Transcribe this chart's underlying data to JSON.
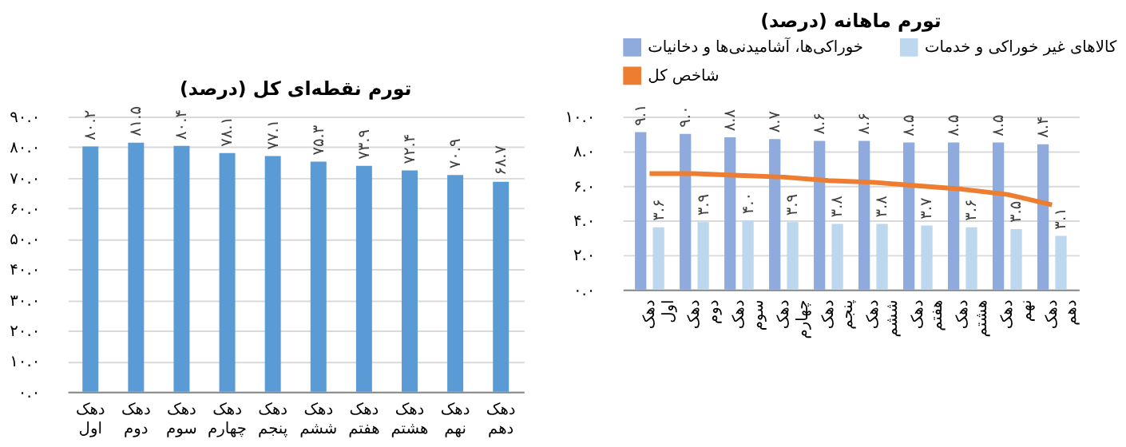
{
  "chart_data": [
    {
      "type": "bar",
      "title": "تورم نقطه‌ای کل (درصد)",
      "categories": [
        "دهک اول",
        "دهک دوم",
        "دهک سوم",
        "دهک چهارم",
        "دهک پنجم",
        "دهک ششم",
        "دهک هفتم",
        "دهک هشتم",
        "دهک نهم",
        "دهک دهم"
      ],
      "series": [
        {
          "color": "#5b9bd5",
          "values": [
            80.2,
            81.5,
            80.4,
            78.1,
            77.1,
            75.3,
            73.9,
            72.4,
            70.9,
            68.7
          ],
          "value_labels": [
            "۸۰.۲",
            "۸۱.۵",
            "۸۰.۴",
            "۷۸.۱",
            "۷۷.۱",
            "۷۵.۳",
            "۷۳.۹",
            "۷۲.۴",
            "۷۰.۹",
            "۶۸.۷"
          ]
        }
      ],
      "ylim": [
        0,
        90
      ],
      "yticks": [
        {
          "value": 0,
          "label": "۰.۰"
        },
        {
          "value": 10,
          "label": "۱۰.۰"
        },
        {
          "value": 20,
          "label": "۲۰.۰"
        },
        {
          "value": 30,
          "label": "۳۰.۰"
        },
        {
          "value": 40,
          "label": "۴۰.۰"
        },
        {
          "value": 50,
          "label": "۵۰.۰"
        },
        {
          "value": 60,
          "label": "۶۰.۰"
        },
        {
          "value": 70,
          "label": "۷۰.۰"
        },
        {
          "value": 80,
          "label": "۸۰.۰"
        },
        {
          "value": 90,
          "label": "۹۰.۰"
        }
      ],
      "grid": "y",
      "legend": false
    },
    {
      "type": "bar",
      "title": "تورم ماهانه (درصد)",
      "categories": [
        "دهک اول",
        "دهک دوم",
        "دهک سوم",
        "دهک چهارم",
        "دهک پنجم",
        "دهک ششم",
        "دهک هفتم",
        "دهک هشتم",
        "دهک نهم",
        "دهک دهم"
      ],
      "series": [
        {
          "name": "خوراکی‌ها، آشامیدنی‌ها و دخانیات",
          "color": "#8faadc",
          "values": [
            9.1,
            9.0,
            8.8,
            8.7,
            8.6,
            8.6,
            8.5,
            8.5,
            8.5,
            8.4
          ],
          "value_labels": [
            "۹.۱",
            "۹.۰",
            "۸.۸",
            "۸.۷",
            "۸.۶",
            "۸.۶",
            "۸.۵",
            "۸.۵",
            "۸.۵",
            "۸.۴"
          ]
        },
        {
          "name": "کالاهای غیر خوراکی و خدمات",
          "color": "#bdd7ee",
          "values": [
            3.6,
            3.9,
            4.0,
            3.9,
            3.8,
            3.8,
            3.7,
            3.6,
            3.5,
            3.1
          ],
          "value_labels": [
            "۳.۶",
            "۳.۹",
            "۴.۰",
            "۳.۹",
            "۳.۸",
            "۳.۸",
            "۳.۷",
            "۳.۶",
            "۳.۵",
            "۳.۱"
          ]
        },
        {
          "name": "شاخص کل",
          "type": "line",
          "color": "#ed7d31",
          "values": [
            6.7,
            6.7,
            6.6,
            6.5,
            6.3,
            6.2,
            6.0,
            5.8,
            5.5,
            4.9
          ]
        }
      ],
      "ylim": [
        0,
        10
      ],
      "yticks": [
        {
          "value": 0,
          "label": "۰.۰"
        },
        {
          "value": 2,
          "label": "۲.۰"
        },
        {
          "value": 4,
          "label": "۴.۰"
        },
        {
          "value": 6,
          "label": "۶.۰"
        },
        {
          "value": 8,
          "label": "۸.۰"
        },
        {
          "value": 10,
          "label": "۱۰.۰"
        }
      ],
      "grid": "y",
      "legend": "top",
      "marker": "none",
      "line_style": "solid"
    }
  ]
}
